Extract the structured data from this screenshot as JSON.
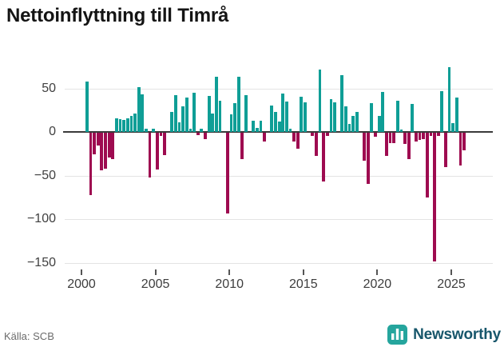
{
  "chart": {
    "title": "Nettoinflyttning till Timrå"
  },
  "chart_data": {
    "type": "bar",
    "title": "Nettoinflyttning till Timrå",
    "x_axis": "quarters",
    "categories": [
      "2000 Q1",
      "2000 Q2",
      "2000 Q3",
      "2000 Q4",
      "2001 Q1",
      "2001 Q2",
      "2001 Q3",
      "2001 Q4",
      "2002 Q1",
      "2002 Q2",
      "2002 Q3",
      "2002 Q4",
      "2003 Q1",
      "2003 Q2",
      "2003 Q3",
      "2003 Q4",
      "2004 Q1",
      "2004 Q2",
      "2004 Q3",
      "2004 Q4",
      "2005 Q1",
      "2005 Q2",
      "2005 Q3",
      "2005 Q4",
      "2006 Q1",
      "2006 Q2",
      "2006 Q3",
      "2006 Q4",
      "2007 Q1",
      "2007 Q2",
      "2007 Q3",
      "2007 Q4",
      "2008 Q1",
      "2008 Q2",
      "2008 Q3",
      "2008 Q4",
      "2009 Q1",
      "2009 Q2",
      "2009 Q3",
      "2009 Q4",
      "2010 Q1",
      "2010 Q2",
      "2010 Q3",
      "2010 Q4",
      "2011 Q1",
      "2011 Q2",
      "2011 Q3",
      "2011 Q4",
      "2012 Q1",
      "2012 Q2",
      "2012 Q3",
      "2012 Q4",
      "2013 Q1",
      "2013 Q2",
      "2013 Q3",
      "2013 Q4",
      "2014 Q1",
      "2014 Q2",
      "2014 Q3",
      "2014 Q4",
      "2015 Q1",
      "2015 Q2",
      "2015 Q3",
      "2015 Q4",
      "2016 Q1",
      "2016 Q2",
      "2016 Q3",
      "2016 Q4",
      "2017 Q1",
      "2017 Q2",
      "2017 Q3",
      "2017 Q4",
      "2018 Q1",
      "2018 Q2",
      "2018 Q3",
      "2018 Q4",
      "2019 Q1",
      "2019 Q2",
      "2019 Q3",
      "2019 Q4",
      "2020 Q1",
      "2020 Q2",
      "2020 Q3",
      "2020 Q4",
      "2021 Q1",
      "2021 Q2",
      "2021 Q3",
      "2021 Q4",
      "2022 Q1",
      "2022 Q2",
      "2022 Q3",
      "2022 Q4",
      "2023 Q1",
      "2023 Q2",
      "2023 Q3",
      "2023 Q4",
      "2024 Q1",
      "2024 Q2",
      "2024 Q3",
      "2024 Q4",
      "2025 Q1",
      "2025 Q2",
      "2025 Q3",
      "2025 Q4"
    ],
    "values": [
      0,
      58,
      -72,
      -25,
      -15,
      -43,
      -41,
      -28,
      -30,
      16,
      15,
      14,
      16,
      18,
      21,
      51,
      43,
      4,
      -51,
      4,
      -42,
      -4,
      -26,
      0,
      23,
      42,
      11,
      29,
      39,
      4,
      45,
      -3,
      4,
      -7,
      41,
      21,
      63,
      36,
      0,
      -93,
      20,
      33,
      63,
      -30,
      42,
      0,
      13,
      5,
      13,
      -10,
      0,
      30,
      23,
      12,
      44,
      35,
      4,
      -10,
      -18,
      40,
      34,
      0,
      -4,
      -27,
      72,
      -56,
      -4,
      38,
      34,
      0,
      65,
      29,
      9,
      18,
      23,
      0,
      -32,
      -59,
      33,
      -5,
      18,
      46,
      -27,
      -12,
      -12,
      36,
      3,
      -13,
      -30,
      32,
      -10,
      -8,
      -7,
      -74,
      -4,
      -148,
      -4,
      47,
      -39,
      74,
      10,
      39,
      -38,
      -20
    ],
    "y_ticks": [
      50,
      0,
      -50,
      -100,
      -150
    ],
    "y_tick_labels": [
      "50",
      "0",
      "−50",
      "−100",
      "−150"
    ],
    "x_tick_years": [
      2000,
      2005,
      2010,
      2015,
      2020,
      2025
    ],
    "x_tick_labels": [
      "2000",
      "2005",
      "2010",
      "2015",
      "2020",
      "2025"
    ],
    "ylim": [
      -160,
      80
    ],
    "grid": "horizontal",
    "legend": "none",
    "colors": {
      "positive": "#0f9e96",
      "negative": "#9e0b50"
    }
  },
  "footer": {
    "source": "Källa: SCB",
    "brand": "Newsworthy"
  }
}
